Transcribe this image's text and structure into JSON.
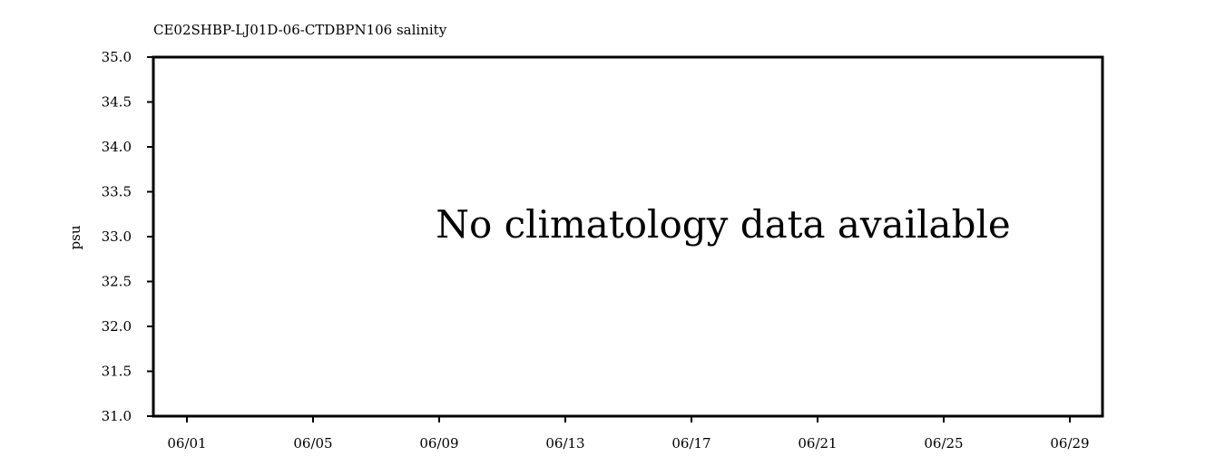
{
  "chart_data": {
    "type": "line",
    "title": "CE02SHBP-LJ01D-06-CTDBPN106 salinity",
    "xlabel": "",
    "ylabel": "psu",
    "ylim": [
      31.0,
      35.0
    ],
    "y_ticks": [
      "31.0",
      "31.5",
      "32.0",
      "32.5",
      "33.0",
      "33.5",
      "34.0",
      "34.5",
      "35.0"
    ],
    "x_ticks": [
      "06/01",
      "06/05",
      "06/09",
      "06/13",
      "06/17",
      "06/21",
      "06/25",
      "06/29"
    ],
    "message": "No climatology data available",
    "grid": false,
    "legend": "none",
    "series": []
  }
}
